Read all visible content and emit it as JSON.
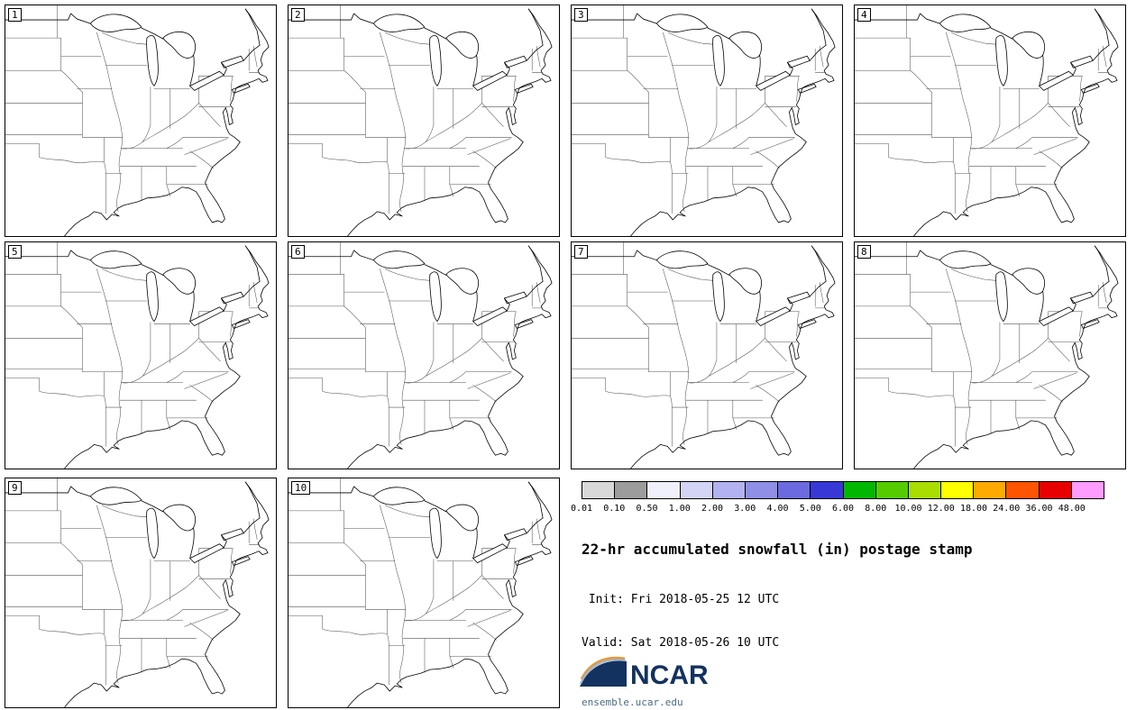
{
  "panels": [
    {
      "label": "1"
    },
    {
      "label": "2"
    },
    {
      "label": "3"
    },
    {
      "label": "4"
    },
    {
      "label": "5"
    },
    {
      "label": "6"
    },
    {
      "label": "7"
    },
    {
      "label": "8"
    },
    {
      "label": "9"
    },
    {
      "label": "10"
    }
  ],
  "colorbar": {
    "labels": [
      "0.01",
      "0.10",
      "0.50",
      "1.00",
      "2.00",
      "3.00",
      "4.00",
      "5.00",
      "6.00",
      "8.00",
      "10.00",
      "12.00",
      "18.00",
      "24.00",
      "36.00",
      "48.00"
    ],
    "colors": [
      "#d9d9d9",
      "#9c9c9c",
      "#f0f0fa",
      "#d4d4f7",
      "#b2b2f0",
      "#8f8fe8",
      "#6b6bdf",
      "#3838d6",
      "#00b800",
      "#55cc00",
      "#aadd00",
      "#ffff00",
      "#ffaa00",
      "#ff5500",
      "#e80000",
      "#ff9dff"
    ]
  },
  "info": {
    "title": "22-hr accumulated snowfall (in) postage stamp",
    "init_line": " Init: Fri 2018-05-25 12 UTC",
    "valid_line": "Valid: Sat 2018-05-26 10 UTC"
  },
  "logo": {
    "name": "NCAR",
    "url": "ensemble.ucar.edu"
  },
  "chart_data": {
    "type": "heatmap",
    "title": "22-hr accumulated snowfall (in) postage stamp",
    "init": "Fri 2018-05-25 12 UTC",
    "valid": "Sat 2018-05-26 10 UTC",
    "unit": "in",
    "accumulation_hours": 22,
    "ensemble_members": [
      "1",
      "2",
      "3",
      "4",
      "5",
      "6",
      "7",
      "8",
      "9",
      "10"
    ],
    "levels": [
      0.01,
      0.1,
      0.5,
      1.0,
      2.0,
      3.0,
      4.0,
      5.0,
      6.0,
      8.0,
      10.0,
      12.0,
      18.0,
      24.0,
      36.0,
      48.0
    ],
    "level_colors": [
      "#d9d9d9",
      "#9c9c9c",
      "#f0f0fa",
      "#d4d4f7",
      "#b2b2f0",
      "#8f8fe8",
      "#6b6bdf",
      "#3838d6",
      "#00b800",
      "#55cc00",
      "#aadd00",
      "#ffff00",
      "#ffaa00",
      "#ff5500",
      "#e80000",
      "#ff9dff"
    ],
    "values": "no snowfall contours shaded in any ensemble member panel (all values below 0.01 in)",
    "legend_position": "bottom-right",
    "panel_layout": "4 x 2 grid plus 2 panels in third row, maps of central/eastern United States"
  }
}
